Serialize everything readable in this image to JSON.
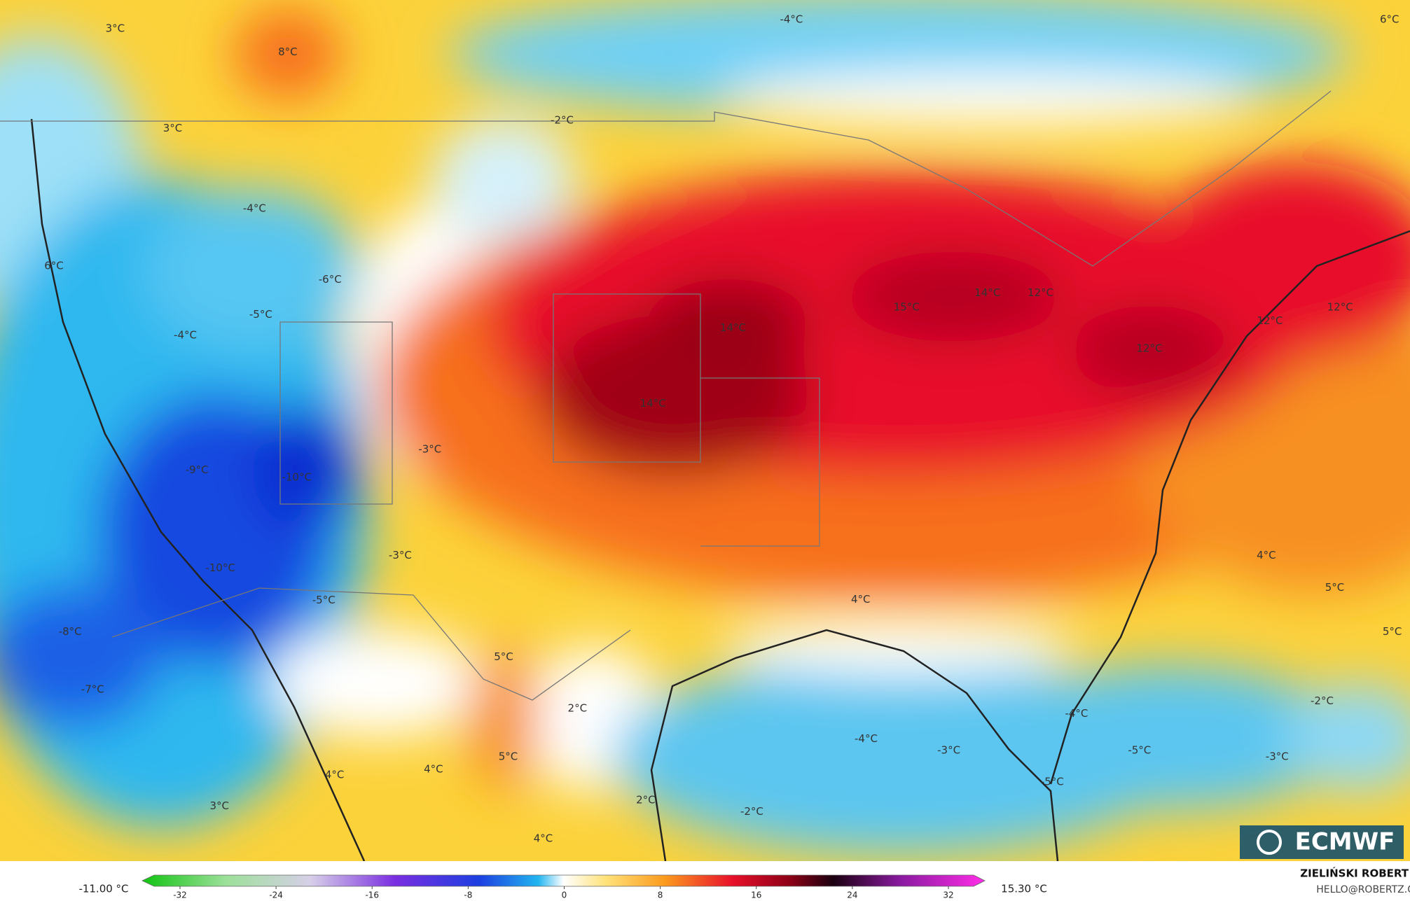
{
  "map_labels": [
    "3°C",
    "8°C",
    "-4°C",
    "6°C",
    "3°C",
    "-2°C",
    "-4°C",
    "6°C",
    "-6°C",
    "-5°C",
    "-4°C",
    "14°C",
    "14°C",
    "12°C",
    "15°C",
    "12°C",
    "12°C",
    "12°C",
    "14°C",
    "-3°C",
    "-9°C",
    "-10°C",
    "-3°C",
    "-10°C",
    "-5°C",
    "4°C",
    "5°C",
    "4°C",
    "-8°C",
    "5°C",
    "5°C",
    "-7°C",
    "2°C",
    "-2°C",
    "-4°C",
    "-4°C",
    "-3°C",
    "-5°C",
    "-3°C",
    "5°C",
    "-5°C",
    "4°C",
    "4°C",
    "3°C",
    "2°C",
    "-2°C",
    "4°C"
  ],
  "colorbar": {
    "min_label": "-11.00 °C",
    "max_label": "15.30 °C",
    "ticks": [
      -32,
      -24,
      -16,
      -8,
      0,
      8,
      16,
      24,
      32
    ]
  },
  "logo": "ECMWF",
  "credit": {
    "name": "ZIELIŃSKI ROBERT",
    "contact": "HELLO@ROBERTZ.CO"
  }
}
